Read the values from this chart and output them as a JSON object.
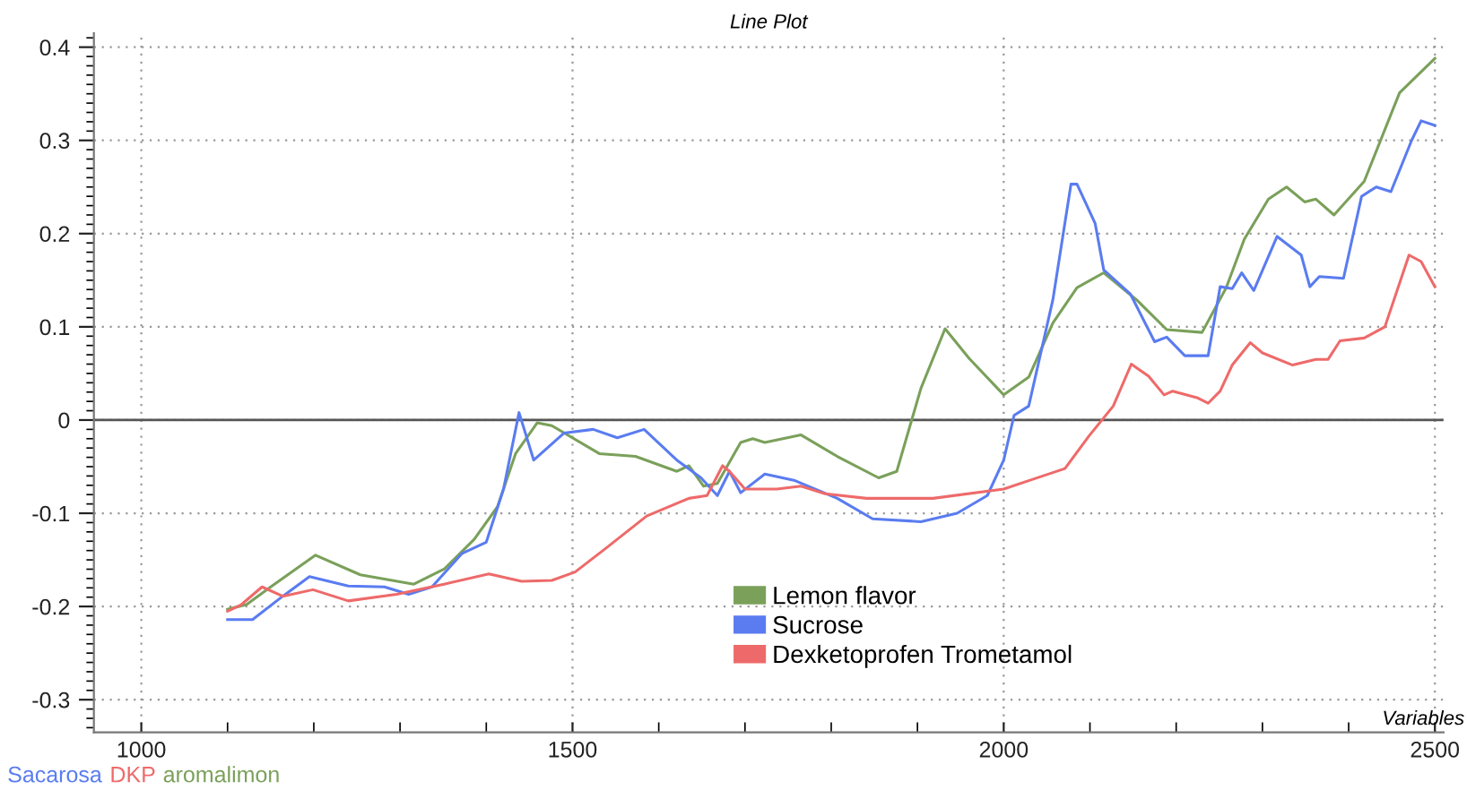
{
  "chart_data": {
    "type": "line",
    "title": "Line Plot",
    "xlabel": "Variables",
    "annotations": [
      "Sacarosa",
      "DKP",
      "aromalimon"
    ],
    "xlim": [
      945,
      2510
    ],
    "ylim": [
      -0.335,
      0.415
    ],
    "xticks": [
      1000,
      1500,
      2000,
      2500
    ],
    "yticks": [
      -0.3,
      -0.2,
      -0.1,
      0,
      0.1,
      0.2,
      0.3,
      0.4
    ],
    "grid": true,
    "legend": "bottom",
    "line_style": "solid",
    "marker": "none",
    "ref_lines": [
      {
        "axis": "y",
        "value": 0,
        "color": "#555555"
      }
    ],
    "series": [
      {
        "name": "Lemon flavor",
        "color": "#7aa05a",
        "x": [
          1100,
          1122,
          1150,
          1202,
          1254,
          1316,
          1351,
          1386,
          1413,
          1434,
          1459,
          1476,
          1531,
          1573,
          1621,
          1635,
          1652,
          1668,
          1695,
          1709,
          1723,
          1765,
          1807,
          1855,
          1876,
          1904,
          1932,
          1960,
          2000,
          2029,
          2057,
          2085,
          2116,
          2154,
          2189,
          2230,
          2258,
          2279,
          2307,
          2328,
          2349,
          2362,
          2383,
          2418,
          2459,
          2500
        ],
        "values": [
          -0.203,
          -0.198,
          -0.179,
          -0.145,
          -0.166,
          -0.176,
          -0.16,
          -0.128,
          -0.093,
          -0.036,
          -0.003,
          -0.006,
          -0.036,
          -0.039,
          -0.055,
          -0.049,
          -0.071,
          -0.068,
          -0.024,
          -0.02,
          -0.024,
          -0.016,
          -0.039,
          -0.062,
          -0.055,
          0.034,
          0.098,
          0.066,
          0.027,
          0.046,
          0.104,
          0.142,
          0.158,
          0.129,
          0.097,
          0.094,
          0.142,
          0.194,
          0.237,
          0.25,
          0.234,
          0.237,
          0.22,
          0.256,
          0.351,
          0.388
        ]
      },
      {
        "name": "Sucrose",
        "color": "#5a7cf0",
        "x": [
          1100,
          1129,
          1164,
          1195,
          1240,
          1282,
          1310,
          1337,
          1372,
          1400,
          1420,
          1438,
          1455,
          1490,
          1524,
          1552,
          1583,
          1621,
          1649,
          1668,
          1682,
          1695,
          1723,
          1758,
          1807,
          1848,
          1904,
          1946,
          1981,
          2000,
          2012,
          2029,
          2057,
          2078,
          2085,
          2106,
          2116,
          2147,
          2175,
          2189,
          2210,
          2237,
          2251,
          2265,
          2276,
          2290,
          2317,
          2345,
          2355,
          2366,
          2394,
          2415,
          2432,
          2449,
          2473,
          2484,
          2500
        ],
        "values": [
          -0.214,
          -0.214,
          -0.189,
          -0.168,
          -0.178,
          -0.179,
          -0.187,
          -0.179,
          -0.143,
          -0.131,
          -0.074,
          0.008,
          -0.043,
          -0.014,
          -0.01,
          -0.019,
          -0.01,
          -0.043,
          -0.062,
          -0.081,
          -0.055,
          -0.078,
          -0.058,
          -0.065,
          -0.084,
          -0.106,
          -0.109,
          -0.1,
          -0.081,
          -0.043,
          0.005,
          0.015,
          0.129,
          0.253,
          0.253,
          0.211,
          0.161,
          0.135,
          0.084,
          0.089,
          0.069,
          0.069,
          0.143,
          0.141,
          0.158,
          0.139,
          0.197,
          0.177,
          0.143,
          0.154,
          0.152,
          0.24,
          0.25,
          0.245,
          0.3,
          0.321,
          0.316
        ]
      },
      {
        "name": "Dexketoprofen Trometamol",
        "color": "#ee6a6a",
        "x": [
          1100,
          1116,
          1140,
          1164,
          1199,
          1240,
          1296,
          1351,
          1403,
          1441,
          1476,
          1503,
          1538,
          1586,
          1635,
          1656,
          1674,
          1682,
          1700,
          1737,
          1765,
          1793,
          1841,
          1918,
          2000,
          2029,
          2071,
          2099,
          2127,
          2148,
          2168,
          2186,
          2196,
          2224,
          2237,
          2251,
          2265,
          2286,
          2300,
          2335,
          2362,
          2376,
          2390,
          2418,
          2442,
          2470,
          2484,
          2500
        ],
        "values": [
          -0.205,
          -0.198,
          -0.179,
          -0.189,
          -0.182,
          -0.194,
          -0.187,
          -0.176,
          -0.165,
          -0.173,
          -0.172,
          -0.163,
          -0.138,
          -0.103,
          -0.084,
          -0.081,
          -0.049,
          -0.055,
          -0.074,
          -0.074,
          -0.071,
          -0.079,
          -0.084,
          -0.084,
          -0.074,
          -0.065,
          -0.052,
          -0.017,
          0.015,
          0.06,
          0.047,
          0.027,
          0.031,
          0.024,
          0.018,
          0.031,
          0.059,
          0.083,
          0.072,
          0.059,
          0.065,
          0.065,
          0.085,
          0.088,
          0.1,
          0.177,
          0.17,
          0.143
        ]
      }
    ]
  }
}
